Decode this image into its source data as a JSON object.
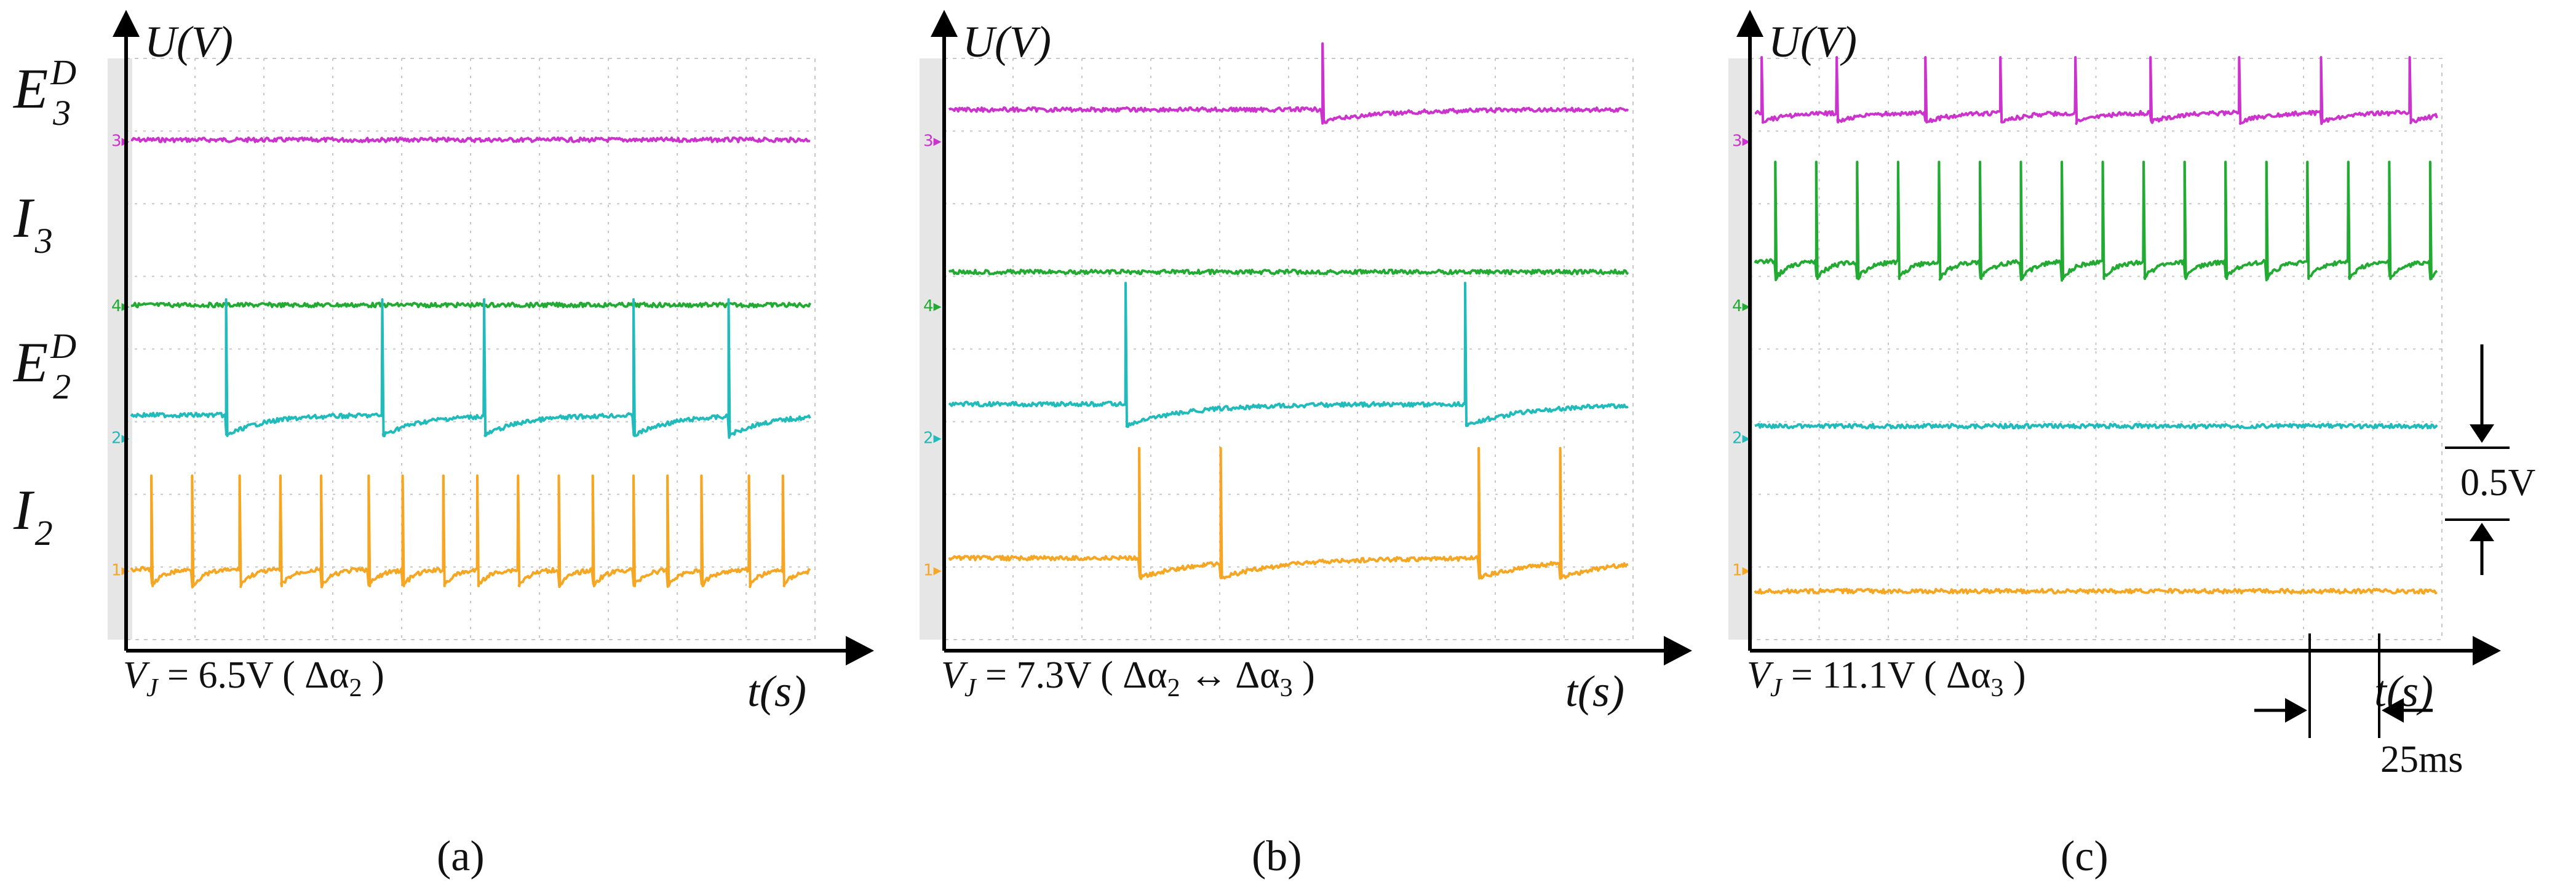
{
  "figure": {
    "row_labels": [
      {
        "main": "E",
        "sub": "3",
        "sup": "D"
      },
      {
        "main": "I",
        "sub": "3",
        "sup": ""
      },
      {
        "main": "E",
        "sub": "2",
        "sup": "D"
      },
      {
        "main": "I",
        "sub": "2",
        "sup": ""
      }
    ],
    "colors": {
      "E3D": "#cc33cc",
      "I3": "#22aa33",
      "E2D": "#22bbbb",
      "I2": "#f5a623",
      "axis": "#000000",
      "grid": "#c8c8c8",
      "left_strip": "#e6e6e6"
    },
    "channel_markers": {
      "labels": [
        "3",
        "4",
        "2",
        "1"
      ],
      "colors": [
        "#cc33cc",
        "#22aa33",
        "#22bbbb",
        "#f5a623"
      ]
    }
  },
  "chart_data": [
    {
      "type": "line",
      "panel_label": "(a)",
      "ylabel": "U(V)",
      "xlabel": "t(s)",
      "condition": {
        "prefix": "V",
        "sub": "J",
        "text": " = 6.5V ( Δα",
        "alpha_sub": "2",
        "suffix": " )"
      },
      "series": [
        {
          "name": "E3D",
          "color": "#cc33cc",
          "level": 0.88,
          "spikes": [],
          "spike_height": 0,
          "decay": 0
        },
        {
          "name": "I3",
          "color": "#22aa33",
          "level": 0.58,
          "spikes": [],
          "spike_height": 0,
          "decay": 0
        },
        {
          "name": "E2D",
          "color": "#22bbbb",
          "level": 0.38,
          "spikes": [
            0.14,
            0.37,
            0.52,
            0.74,
            0.88
          ],
          "spike_height": 0.21,
          "decay": 0.055
        },
        {
          "name": "I2",
          "color": "#f5a623",
          "level": 0.1,
          "spikes": [
            0.03,
            0.09,
            0.16,
            0.22,
            0.28,
            0.35,
            0.4,
            0.46,
            0.51,
            0.57,
            0.63,
            0.68,
            0.74,
            0.79,
            0.84,
            0.91,
            0.96
          ],
          "spike_height": 0.17,
          "decay": 0.018
        }
      ]
    },
    {
      "type": "line",
      "panel_label": "(b)",
      "ylabel": "U(V)",
      "xlabel": "t(s)",
      "condition": {
        "prefix": "V",
        "sub": "J",
        "text": " = 7.3V ( Δα",
        "alpha_sub": "2",
        "suffix": " ↔  Δα",
        "alpha_sub2": "3",
        "suffix2": "  )"
      },
      "series": [
        {
          "name": "E3D",
          "color": "#cc33cc",
          "level": 0.935,
          "spikes": [
            0.55
          ],
          "spike_height": 0.12,
          "decay": 0.09
        },
        {
          "name": "I3",
          "color": "#22aa33",
          "level": 0.64,
          "spikes": [],
          "spike_height": 0,
          "decay": 0
        },
        {
          "name": "E2D",
          "color": "#22bbbb",
          "level": 0.4,
          "spikes": [
            0.26,
            0.76
          ],
          "spike_height": 0.22,
          "decay": 0.09
        },
        {
          "name": "I2",
          "color": "#f5a623",
          "level": 0.12,
          "spikes": [
            0.28,
            0.4,
            0.78,
            0.9
          ],
          "spike_height": 0.2,
          "decay": 0.09
        }
      ]
    },
    {
      "type": "line",
      "panel_label": "(c)",
      "ylabel": "U(V)",
      "xlabel": "t(s)",
      "condition": {
        "prefix": "V",
        "sub": "J",
        "text": " = 11.1V ( Δα",
        "alpha_sub": "3",
        "suffix": " )"
      },
      "series": [
        {
          "name": "E3D",
          "color": "#cc33cc",
          "level": 0.93,
          "spikes": [
            0.01,
            0.12,
            0.25,
            0.36,
            0.47,
            0.58,
            0.71,
            0.83,
            0.96
          ],
          "spike_height": 0.1,
          "decay": 0.04
        },
        {
          "name": "I3",
          "color": "#22aa33",
          "level": 0.66,
          "spikes": [
            0.03,
            0.09,
            0.15,
            0.21,
            0.27,
            0.33,
            0.39,
            0.45,
            0.51,
            0.57,
            0.63,
            0.69,
            0.75,
            0.81,
            0.87,
            0.93,
            0.99
          ],
          "spike_height": 0.18,
          "decay": 0.02
        },
        {
          "name": "E2D",
          "color": "#22bbbb",
          "level": 0.36,
          "spikes": [],
          "spike_height": 0,
          "decay": 0
        },
        {
          "name": "I2",
          "color": "#f5a623",
          "level": 0.06,
          "spikes": [],
          "spike_height": 0,
          "decay": 0
        }
      ],
      "annotations": {
        "voltage_scale": "0.5V",
        "time_scale": "25ms"
      }
    }
  ]
}
